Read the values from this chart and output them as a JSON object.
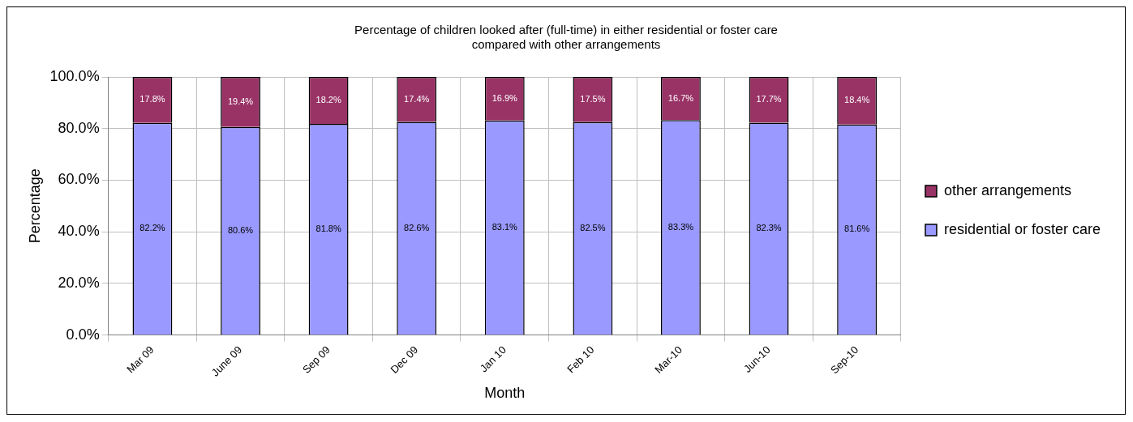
{
  "chart_data": {
    "type": "bar",
    "title": [
      "Percentage of children looked after (full-time) in either residential or foster care",
      "compared with other arrangements"
    ],
    "xlabel": "Month",
    "ylabel": "Percentage",
    "categories": [
      "Mar 09",
      "June 09",
      "Sep 09",
      "Dec 09",
      "Jan 10",
      "Feb 10",
      "Mar-10",
      "Jun-10",
      "Sep-10"
    ],
    "stacked": true,
    "series": [
      {
        "name": "residential or foster care",
        "color": "#9999ff",
        "values": [
          82.2,
          80.6,
          81.8,
          82.6,
          83.1,
          82.5,
          83.3,
          82.3,
          81.6
        ],
        "value_labels": [
          "82.2%",
          "80.6%",
          "81.8%",
          "82.6%",
          "83.1%",
          "82.5%",
          "83.3%",
          "82.3%",
          "81.6%"
        ]
      },
      {
        "name": "other arrangements",
        "color": "#993366",
        "values": [
          17.8,
          19.4,
          18.2,
          17.4,
          16.9,
          17.5,
          16.7,
          17.7,
          18.4
        ],
        "value_labels": [
          "17.8%",
          "19.4%",
          "18.2%",
          "17.4%",
          "16.9%",
          "17.5%",
          "16.7%",
          "17.7%",
          "18.4%"
        ]
      }
    ],
    "ylim": [
      0,
      100
    ],
    "yticks": [
      {
        "value": 0,
        "label": "0.0%"
      },
      {
        "value": 20,
        "label": "20.0%"
      },
      {
        "value": 40,
        "label": "40.0%"
      },
      {
        "value": 60,
        "label": "60.0%"
      },
      {
        "value": 80,
        "label": "80.0%"
      },
      {
        "value": 100,
        "label": "100.0%"
      }
    ],
    "grid": true,
    "legend": "right"
  }
}
